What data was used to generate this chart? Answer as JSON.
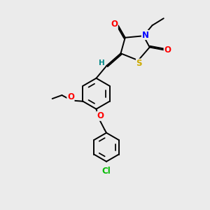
{
  "bg_color": "#ebebeb",
  "atom_colors": {
    "O": "#ff0000",
    "N": "#0000ff",
    "S": "#ccaa00",
    "Cl": "#00bb00",
    "C": "#000000",
    "H": "#008888"
  },
  "bond_color": "#000000",
  "lw": 1.4,
  "fs": 8.5
}
